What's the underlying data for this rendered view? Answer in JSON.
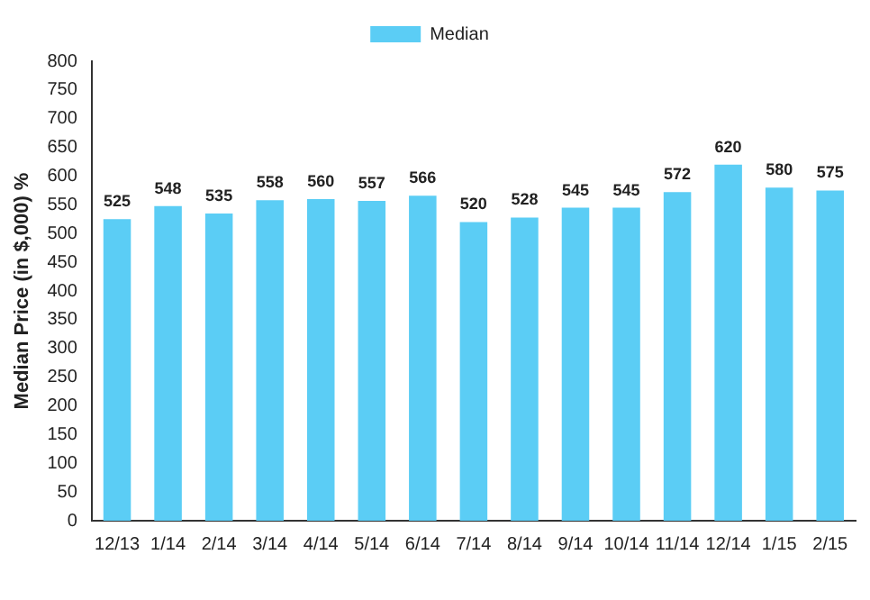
{
  "chart_data": {
    "type": "bar",
    "ylabel": "Median Price (in $,000) %",
    "categories": [
      "12/13",
      "1/14",
      "2/14",
      "3/14",
      "4/14",
      "5/14",
      "6/14",
      "7/14",
      "8/14",
      "9/14",
      "10/14",
      "11/14",
      "12/14",
      "1/15",
      "2/15"
    ],
    "series": [
      {
        "name": "Median",
        "color": "#5bcdf5",
        "values": [
          525,
          548,
          535,
          558,
          560,
          557,
          566,
          520,
          528,
          545,
          545,
          572,
          620,
          580,
          575
        ]
      }
    ],
    "ylim": [
      0,
      800
    ],
    "yticks": [
      0,
      50,
      100,
      150,
      200,
      250,
      300,
      350,
      400,
      450,
      500,
      550,
      600,
      650,
      700,
      750,
      800
    ],
    "grid": false,
    "legend": "top",
    "data_labels": true
  }
}
